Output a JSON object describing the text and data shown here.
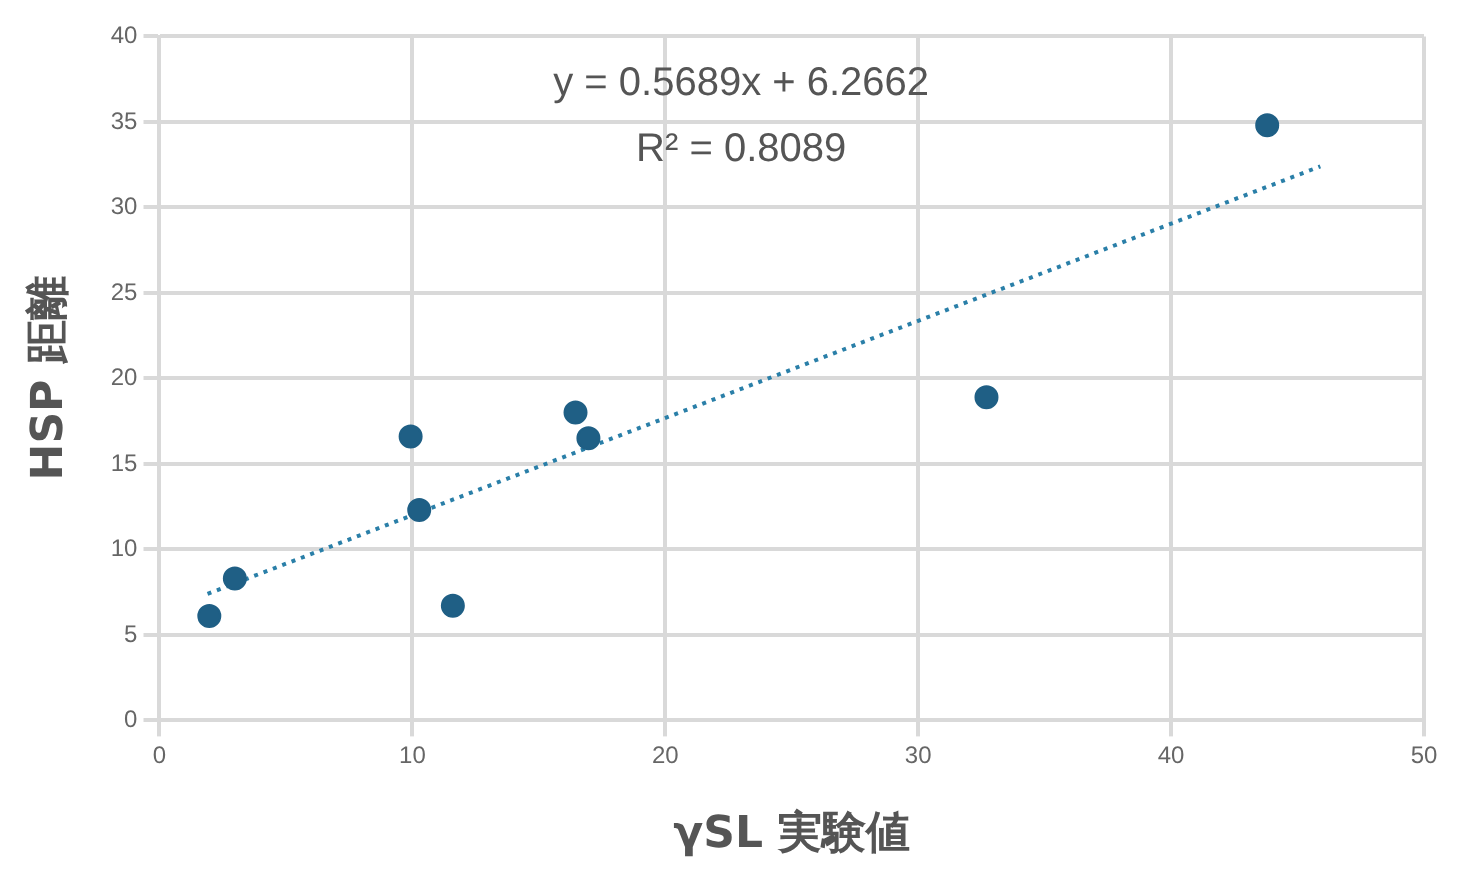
{
  "chart_data": {
    "type": "scatter",
    "xlabel": "γSL 実験値",
    "ylabel": "HSP 距離",
    "annotations": [
      "y = 0.5689x + 6.2662",
      "R² = 0.8089"
    ],
    "series": [
      {
        "color": "#1f5f85",
        "marker": "circle",
        "x": [
          1.97,
          2.98,
          9.93,
          10.27,
          11.6,
          16.45,
          16.96,
          32.7,
          43.8
        ],
        "values": [
          6.1,
          8.3,
          16.6,
          12.3,
          6.7,
          18.0,
          16.5,
          18.9,
          34.8
        ]
      },
      {
        "type": "line",
        "color": "#2a7fa8",
        "line_style": "dotted",
        "x": [
          1.9,
          45.9
        ],
        "values": [
          7.4,
          32.4
        ],
        "marker": "none"
      }
    ],
    "xlim": [
      0,
      50
    ],
    "xticks": [
      0,
      10,
      20,
      30,
      40,
      50
    ],
    "ylim": [
      0,
      40
    ],
    "yticks": [
      0,
      5,
      10,
      15,
      20,
      25,
      30,
      35,
      40
    ],
    "grid": true,
    "legend": false
  }
}
